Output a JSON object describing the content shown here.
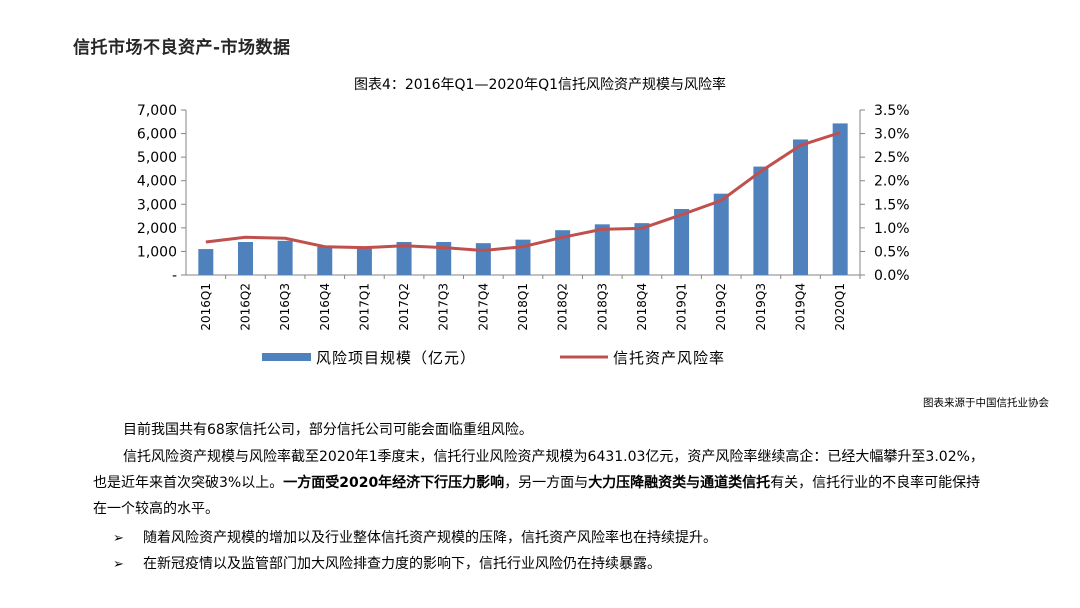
{
  "page": {
    "title": "信托市场不良资产-市场数据"
  },
  "chart_data": {
    "type": "bar",
    "title": "图表4：2016年Q1—2020年Q1信托风险资产规模与风险率",
    "categories": [
      "2016Q1",
      "2016Q2",
      "2016Q3",
      "2016Q4",
      "2017Q1",
      "2017Q2",
      "2017Q3",
      "2017Q4",
      "2018Q1",
      "2018Q2",
      "2018Q3",
      "2018Q4",
      "2019Q1",
      "2019Q2",
      "2019Q3",
      "2019Q4",
      "2020Q1"
    ],
    "y_left": {
      "range": [
        0,
        7000
      ],
      "ticks": [
        0,
        1000,
        2000,
        3000,
        4000,
        5000,
        6000,
        7000
      ],
      "tick_labels": [
        "-",
        "1,000",
        "2,000",
        "3,000",
        "4,000",
        "5,000",
        "6,000",
        "7,000"
      ]
    },
    "y_right": {
      "range": [
        0,
        3.5
      ],
      "ticks": [
        0,
        0.5,
        1.0,
        1.5,
        2.0,
        2.5,
        3.0,
        3.5
      ],
      "tick_labels": [
        "0.0%",
        "0.5%",
        "1.0%",
        "1.5%",
        "2.0%",
        "2.5%",
        "3.0%",
        "3.5%"
      ]
    },
    "series": [
      {
        "name": "风险项目规模（亿元）",
        "type": "bar",
        "axis": "left",
        "color": "#4F81BD",
        "values": [
          1100,
          1400,
          1450,
          1200,
          1150,
          1400,
          1400,
          1350,
          1500,
          1900,
          2150,
          2200,
          2800,
          3450,
          4600,
          5750,
          6431.03
        ]
      },
      {
        "name": "信托资产风险率",
        "type": "line",
        "axis": "right",
        "color": "#C0504D",
        "values": [
          0.7,
          0.8,
          0.78,
          0.6,
          0.58,
          0.62,
          0.58,
          0.52,
          0.6,
          0.8,
          0.97,
          0.99,
          1.28,
          1.58,
          2.2,
          2.75,
          3.02
        ]
      }
    ],
    "legend": "bottom",
    "grid": false
  },
  "source_note": "图表来源于中国信托业协会",
  "body": {
    "p1": "目前我国共有68家信托公司，部分信托公司可能会面临重组风险。",
    "p2_a": "信托风险资产规模与风险率截至2020年1季度末，信托行业风险资产规模为6431.03亿元，资产风险率继续高企：已经大幅攀升至3.02%，也是近年来首次突破3%以上。",
    "p2_b": "一方面受",
    "p2_c": "2020年经济下行压力影响",
    "p2_d": "，另一方面与",
    "p2_e": "大力压降融资类与通道类信托",
    "p2_f": "有关，信托行业的不良率可能保持在一个较高的水平。",
    "bullets": [
      "随着风险资产规模的增加以及行业整体信托资产规模的压降，信托资产风险率也在持续提升。",
      "在新冠疫情以及监管部门加大风险排查力度的影响下，信托行业风险仍在持续暴露。"
    ],
    "bullet_glyph": "➢"
  }
}
